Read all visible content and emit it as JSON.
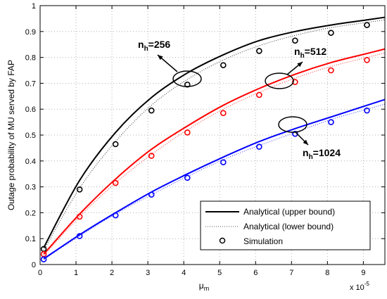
{
  "chart_data": {
    "type": "line",
    "xlabel": "μ",
    "xlabel_sub": "m",
    "ylabel": "Outage probability of MU served by FAP",
    "x_multiplier": "x 10",
    "x_multiplier_exp": "-5",
    "xlim": [
      0,
      9.6
    ],
    "ylim": [
      0,
      1
    ],
    "xticks": [
      0,
      1,
      2,
      3,
      4,
      5,
      6,
      7,
      8,
      9
    ],
    "yticks": [
      0,
      0.1,
      0.2,
      0.3,
      0.4,
      0.5,
      0.6,
      0.7,
      0.8,
      0.9,
      1
    ],
    "grid": true,
    "legend_position": "bottom-right",
    "legend": [
      {
        "label": "Analytical (upper bound)",
        "style": "solid"
      },
      {
        "label": "Analytical (lower bound)",
        "style": "dotted"
      },
      {
        "label": "Simulation",
        "style": "marker"
      }
    ],
    "series": [
      {
        "group": "n_h=256",
        "color": "#000000",
        "x": [
          0.1,
          1.1,
          2.1,
          3.1,
          4.1,
          5.1,
          6.1,
          7.1,
          8.1,
          9.1
        ],
        "upper": [
          0.065,
          0.325,
          0.51,
          0.645,
          0.74,
          0.81,
          0.865,
          0.9,
          0.925,
          0.945
        ],
        "lower": [
          0.055,
          0.295,
          0.475,
          0.615,
          0.715,
          0.79,
          0.845,
          0.885,
          0.915,
          0.935
        ],
        "simulation": [
          0.06,
          0.29,
          0.465,
          0.595,
          0.695,
          0.77,
          0.825,
          0.865,
          0.895,
          0.925
        ]
      },
      {
        "group": "n_h=512",
        "color": "#ff0000",
        "x": [
          0.1,
          1.1,
          2.1,
          3.1,
          4.1,
          5.1,
          6.1,
          7.1,
          8.1,
          9.1
        ],
        "upper": [
          0.04,
          0.195,
          0.33,
          0.445,
          0.535,
          0.615,
          0.68,
          0.735,
          0.78,
          0.815
        ],
        "lower": [
          0.035,
          0.185,
          0.315,
          0.425,
          0.52,
          0.6,
          0.665,
          0.72,
          0.765,
          0.8
        ],
        "simulation": [
          0.04,
          0.185,
          0.315,
          0.42,
          0.51,
          0.585,
          0.655,
          0.705,
          0.75,
          0.79
        ]
      },
      {
        "group": "n_h=1024",
        "color": "#0000ff",
        "x": [
          0.1,
          1.1,
          2.1,
          3.1,
          4.1,
          5.1,
          6.1,
          7.1,
          8.1,
          9.1
        ],
        "upper": [
          0.022,
          0.115,
          0.2,
          0.28,
          0.35,
          0.415,
          0.475,
          0.525,
          0.57,
          0.615
        ],
        "lower": [
          0.02,
          0.11,
          0.195,
          0.27,
          0.34,
          0.405,
          0.46,
          0.51,
          0.56,
          0.6
        ],
        "simulation": [
          0.02,
          0.11,
          0.19,
          0.27,
          0.335,
          0.395,
          0.455,
          0.505,
          0.55,
          0.595
        ]
      }
    ],
    "annotations": [
      {
        "text_main": "n",
        "text_sub": "h",
        "text_value": "=256"
      },
      {
        "text_main": "n",
        "text_sub": "h",
        "text_value": "=512"
      },
      {
        "text_main": "n",
        "text_sub": "h",
        "text_value": "=1024"
      }
    ]
  }
}
